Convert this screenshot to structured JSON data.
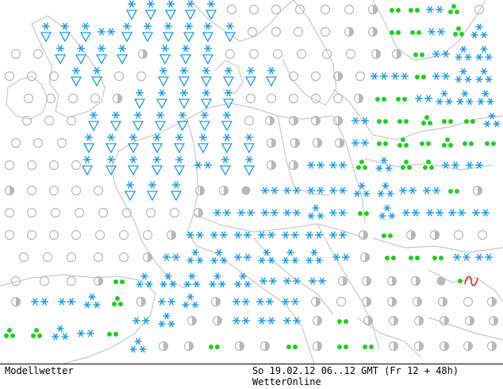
{
  "footer": {
    "model": "Modellwetter",
    "date": "So 19.02.12 06..12 GMT (Fr 12 + 48h)",
    "source": "WetterOnline"
  },
  "colors": {
    "snow": "#1a9ae6",
    "rain": "#22cc22",
    "cloud": "#b8b8b8",
    "border": "#c8c8c8",
    "front": "#e02020"
  },
  "legend_icons": [
    "clear-circle",
    "half-cloud-circle",
    "overcast-disc",
    "snow-flakes",
    "snow-shower-triangle",
    "rain-dots",
    "rain-triad",
    "front-symbol"
  ]
}
